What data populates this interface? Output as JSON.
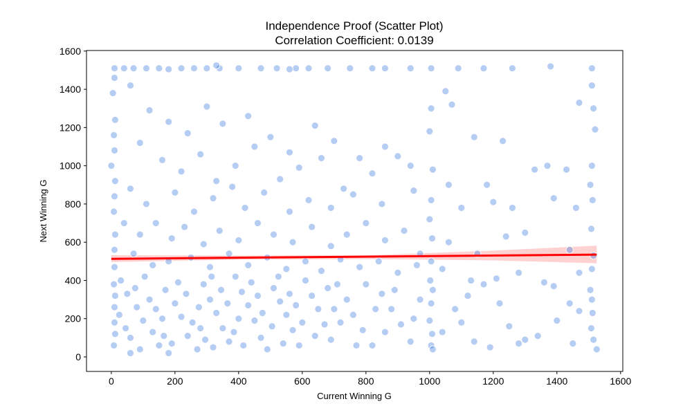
{
  "chart_data": {
    "type": "scatter",
    "title": "Independence Proof (Scatter Plot)",
    "subtitle": "Correlation Coefficient: 0.0139",
    "xlabel": "Current Winning G",
    "ylabel": "Next Winning G",
    "xlim": [
      -78,
      1607
    ],
    "ylim": [
      -76,
      1603
    ],
    "xticks": [
      0,
      200,
      400,
      600,
      800,
      1000,
      1200,
      1400,
      1600
    ],
    "yticks": [
      0,
      200,
      400,
      600,
      800,
      1000,
      1200,
      1400,
      1600
    ],
    "grid": false,
    "point_color": "#2f6fdc",
    "line_color": "#ff0000",
    "band_color": "#ffb3b3",
    "regression": {
      "intercept": 513,
      "slope": 0.0145,
      "x_range": [
        0,
        1525
      ]
    },
    "ci_band": {
      "x": [
        0,
        400,
        800,
        1200,
        1525
      ],
      "lower": [
        496,
        509,
        512,
        505,
        490
      ],
      "upper": [
        532,
        530,
        531,
        556,
        582
      ]
    },
    "points": [
      [
        10,
        1510
      ],
      [
        40,
        1510
      ],
      [
        70,
        1510
      ],
      [
        110,
        1510
      ],
      [
        150,
        1510
      ],
      [
        220,
        1510
      ],
      [
        260,
        1510
      ],
      [
        300,
        1510
      ],
      [
        340,
        1510
      ],
      [
        400,
        1510
      ],
      [
        470,
        1510
      ],
      [
        520,
        1510
      ],
      [
        580,
        1510
      ],
      [
        620,
        1510
      ],
      [
        680,
        1510
      ],
      [
        750,
        1510
      ],
      [
        820,
        1510
      ],
      [
        860,
        1510
      ],
      [
        940,
        1510
      ],
      [
        1005,
        1510
      ],
      [
        1090,
        1510
      ],
      [
        1170,
        1510
      ],
      [
        1260,
        1510
      ],
      [
        1380,
        1520
      ],
      [
        1510,
        1510
      ],
      [
        330,
        1525
      ],
      [
        180,
        1505
      ],
      [
        560,
        1505
      ],
      [
        1510,
        1420
      ],
      [
        1515,
        1300
      ],
      [
        1520,
        1190
      ],
      [
        1510,
        1000
      ],
      [
        1505,
        900
      ],
      [
        1512,
        820
      ],
      [
        1508,
        670
      ],
      [
        1515,
        530
      ],
      [
        1510,
        460
      ],
      [
        1505,
        350
      ],
      [
        1510,
        300
      ],
      [
        1512,
        230
      ],
      [
        1508,
        150
      ],
      [
        1515,
        90
      ],
      [
        1525,
        40
      ],
      [
        1005,
        1300
      ],
      [
        1000,
        1180
      ],
      [
        1010,
        980
      ],
      [
        1005,
        820
      ],
      [
        1000,
        720
      ],
      [
        1008,
        620
      ],
      [
        1005,
        500
      ],
      [
        1002,
        400
      ],
      [
        1010,
        350
      ],
      [
        1005,
        280
      ],
      [
        1000,
        190
      ],
      [
        1008,
        120
      ],
      [
        1005,
        60
      ],
      [
        1010,
        40
      ],
      [
        10,
        1460
      ],
      [
        5,
        1380
      ],
      [
        12,
        1240
      ],
      [
        8,
        1160
      ],
      [
        10,
        1080
      ],
      [
        0,
        1000
      ],
      [
        12,
        920
      ],
      [
        10,
        840
      ],
      [
        8,
        760
      ],
      [
        12,
        640
      ],
      [
        10,
        560
      ],
      [
        10,
        470
      ],
      [
        8,
        380
      ],
      [
        12,
        320
      ],
      [
        10,
        260
      ],
      [
        10,
        180
      ],
      [
        12,
        120
      ],
      [
        8,
        60
      ],
      [
        60,
        1420
      ],
      [
        120,
        1290
      ],
      [
        180,
        1230
      ],
      [
        240,
        1170
      ],
      [
        300,
        1310
      ],
      [
        350,
        1220
      ],
      [
        430,
        1260
      ],
      [
        500,
        1150
      ],
      [
        560,
        1070
      ],
      [
        640,
        1210
      ],
      [
        700,
        1130
      ],
      [
        780,
        1040
      ],
      [
        860,
        1100
      ],
      [
        940,
        1000
      ],
      [
        1050,
        1390
      ],
      [
        1070,
        1320
      ],
      [
        1140,
        1150
      ],
      [
        1230,
        1130
      ],
      [
        1370,
        1000
      ],
      [
        1430,
        980
      ],
      [
        1470,
        1330
      ],
      [
        90,
        1120
      ],
      [
        160,
        1030
      ],
      [
        220,
        970
      ],
      [
        280,
        1060
      ],
      [
        330,
        920
      ],
      [
        390,
        1000
      ],
      [
        450,
        1100
      ],
      [
        530,
        930
      ],
      [
        590,
        990
      ],
      [
        660,
        1040
      ],
      [
        730,
        880
      ],
      [
        820,
        960
      ],
      [
        900,
        1050
      ],
      [
        1060,
        900
      ],
      [
        1180,
        900
      ],
      [
        1260,
        780
      ],
      [
        1330,
        980
      ],
      [
        1460,
        780
      ],
      [
        60,
        880
      ],
      [
        110,
        800
      ],
      [
        200,
        860
      ],
      [
        260,
        760
      ],
      [
        320,
        830
      ],
      [
        380,
        890
      ],
      [
        420,
        780
      ],
      [
        480,
        860
      ],
      [
        560,
        760
      ],
      [
        620,
        820
      ],
      [
        690,
        780
      ],
      [
        760,
        850
      ],
      [
        850,
        800
      ],
      [
        950,
        870
      ],
      [
        1100,
        780
      ],
      [
        1200,
        810
      ],
      [
        1390,
        830
      ],
      [
        40,
        700
      ],
      [
        90,
        640
      ],
      [
        140,
        700
      ],
      [
        190,
        620
      ],
      [
        230,
        680
      ],
      [
        290,
        590
      ],
      [
        340,
        660
      ],
      [
        400,
        610
      ],
      [
        460,
        700
      ],
      [
        510,
        640
      ],
      [
        570,
        600
      ],
      [
        630,
        680
      ],
      [
        690,
        580
      ],
      [
        740,
        640
      ],
      [
        800,
        700
      ],
      [
        860,
        610
      ],
      [
        920,
        660
      ],
      [
        970,
        540
      ],
      [
        1060,
        600
      ],
      [
        1150,
        540
      ],
      [
        1240,
        630
      ],
      [
        1300,
        650
      ],
      [
        1440,
        560
      ],
      [
        70,
        540
      ],
      [
        130,
        480
      ],
      [
        180,
        500
      ],
      [
        250,
        520
      ],
      [
        310,
        470
      ],
      [
        370,
        540
      ],
      [
        430,
        480
      ],
      [
        490,
        520
      ],
      [
        550,
        460
      ],
      [
        610,
        500
      ],
      [
        660,
        450
      ],
      [
        720,
        510
      ],
      [
        780,
        470
      ],
      [
        840,
        500
      ],
      [
        900,
        440
      ],
      [
        960,
        480
      ],
      [
        1040,
        460
      ],
      [
        1130,
        400
      ],
      [
        1210,
        410
      ],
      [
        1280,
        440
      ],
      [
        1360,
        390
      ],
      [
        1470,
        440
      ],
      [
        30,
        400
      ],
      [
        50,
        330
      ],
      [
        80,
        260
      ],
      [
        100,
        190
      ],
      [
        130,
        130
      ],
      [
        150,
        60
      ],
      [
        170,
        350
      ],
      [
        200,
        280
      ],
      [
        220,
        210
      ],
      [
        240,
        110
      ],
      [
        270,
        40
      ],
      [
        290,
        380
      ],
      [
        310,
        300
      ],
      [
        330,
        230
      ],
      [
        350,
        150
      ],
      [
        370,
        80
      ],
      [
        390,
        420
      ],
      [
        410,
        340
      ],
      [
        430,
        270
      ],
      [
        450,
        190
      ],
      [
        470,
        100
      ],
      [
        490,
        40
      ],
      [
        510,
        360
      ],
      [
        530,
        290
      ],
      [
        550,
        220
      ],
      [
        570,
        140
      ],
      [
        590,
        60
      ],
      [
        610,
        400
      ],
      [
        630,
        320
      ],
      [
        650,
        250
      ],
      [
        670,
        170
      ],
      [
        690,
        90
      ],
      [
        710,
        380
      ],
      [
        740,
        300
      ],
      [
        760,
        220
      ],
      [
        790,
        140
      ],
      [
        820,
        60
      ],
      [
        850,
        330
      ],
      [
        880,
        250
      ],
      [
        910,
        170
      ],
      [
        940,
        80
      ],
      [
        970,
        300
      ],
      [
        1080,
        250
      ],
      [
        1100,
        180
      ],
      [
        1140,
        80
      ],
      [
        1190,
        50
      ],
      [
        1220,
        280
      ],
      [
        1250,
        160
      ],
      [
        1280,
        70
      ],
      [
        1340,
        110
      ],
      [
        1400,
        190
      ],
      [
        1450,
        70
      ],
      [
        1470,
        240
      ],
      [
        60,
        100
      ],
      [
        90,
        40
      ],
      [
        120,
        300
      ],
      [
        160,
        200
      ],
      [
        190,
        70
      ],
      [
        60,
        20
      ],
      [
        180,
        20
      ],
      [
        280,
        150
      ],
      [
        320,
        50
      ],
      [
        400,
        200
      ],
      [
        460,
        320
      ],
      [
        540,
        70
      ],
      [
        600,
        180
      ],
      [
        700,
        250
      ],
      [
        800,
        380
      ],
      [
        860,
        130
      ],
      [
        25,
        220
      ],
      [
        45,
        150
      ],
      [
        75,
        360
      ],
      [
        105,
        420
      ],
      [
        140,
        250
      ],
      [
        165,
        110
      ],
      [
        210,
        390
      ],
      [
        235,
        330
      ],
      [
        255,
        180
      ],
      [
        275,
        260
      ],
      [
        295,
        90
      ],
      [
        315,
        420
      ],
      [
        345,
        350
      ],
      [
        365,
        280
      ],
      [
        385,
        130
      ],
      [
        415,
        60
      ],
      [
        440,
        390
      ],
      [
        475,
        230
      ],
      [
        505,
        160
      ],
      [
        525,
        420
      ],
      [
        560,
        330
      ],
      [
        580,
        270
      ],
      [
        640,
        110
      ],
      [
        680,
        360
      ],
      [
        720,
        180
      ],
      [
        770,
        60
      ],
      [
        830,
        250
      ],
      [
        890,
        350
      ],
      [
        950,
        200
      ],
      [
        1040,
        130
      ],
      [
        1120,
        320
      ],
      [
        1170,
        380
      ],
      [
        1300,
        90
      ],
      [
        1390,
        370
      ],
      [
        1440,
        280
      ]
    ]
  }
}
